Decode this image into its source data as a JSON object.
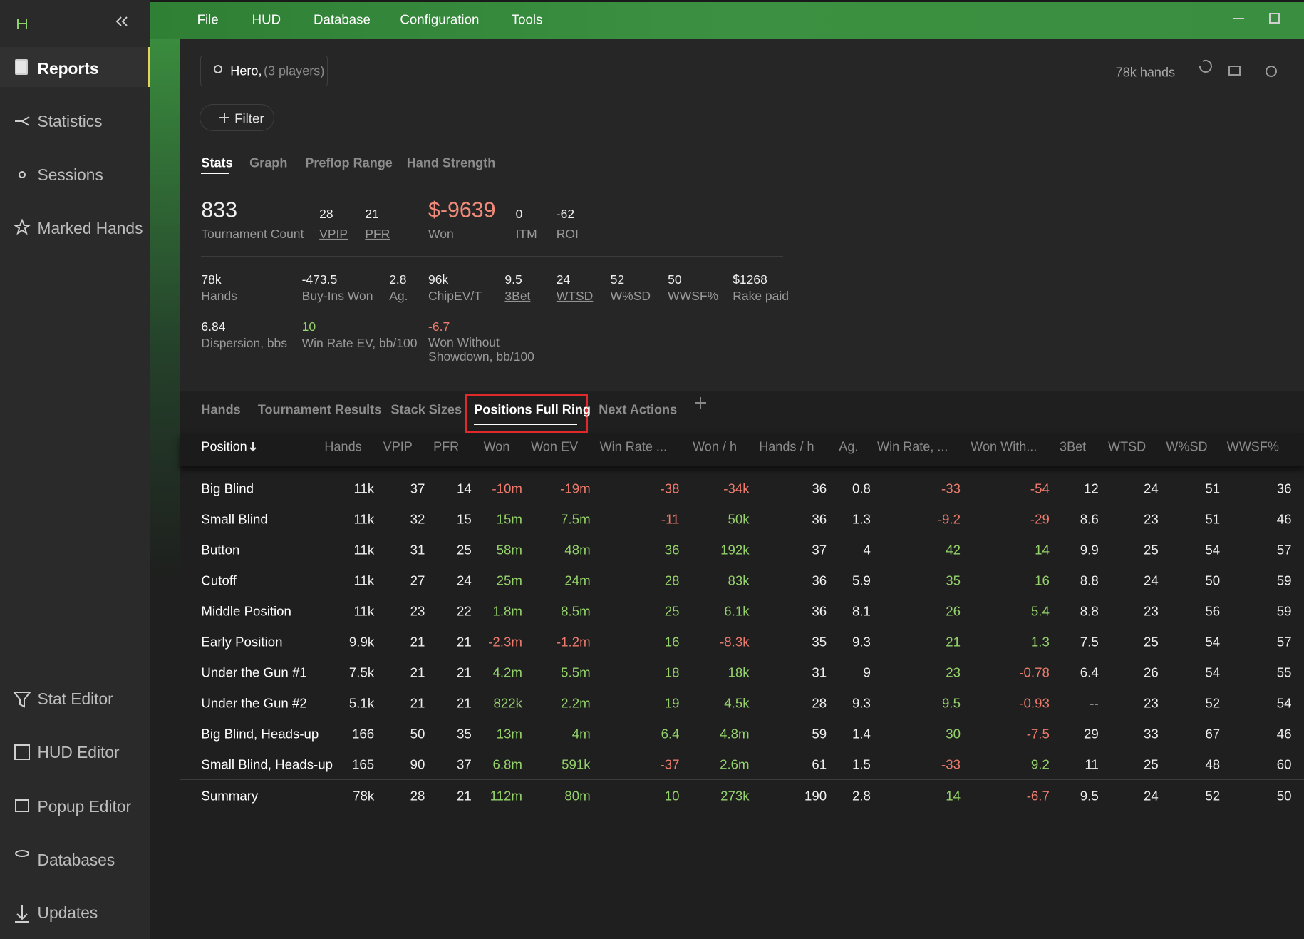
{
  "app": {
    "sidebar": {
      "top": [
        "Reports",
        "Statistics",
        "Sessions",
        "Marked Hands"
      ],
      "bottom": [
        "Stat Editor",
        "HUD Editor",
        "Popup Editor",
        "Databases",
        "Updates"
      ]
    },
    "menu": [
      "File",
      "HUD",
      "Database",
      "Configuration",
      "Tools"
    ],
    "player": {
      "name": "Hero,",
      "detail": "(3 players)"
    },
    "hands_count": "78k hands",
    "filter": "Filter",
    "tabs": [
      "Stats",
      "Graph",
      "Preflop Range",
      "Hand Strength"
    ],
    "colors": {
      "positive": "#95d26b",
      "negative": "#ec7b6d"
    },
    "stats": [
      {
        "value": "833",
        "label": "Tournament Count",
        "big": true
      },
      {
        "value": "28",
        "label": "VPIP",
        "underline": true
      },
      {
        "value": "21",
        "label": "PFR",
        "underline": true
      },
      {
        "value": "$-9639",
        "label": "Won",
        "big": true,
        "tone": "negative"
      },
      {
        "value": "0",
        "label": "ITM"
      },
      {
        "value": "-62",
        "label": "ROI"
      },
      {
        "value": "78k",
        "label": "Hands"
      },
      {
        "value": "-473.5",
        "label": "Buy-Ins Won"
      },
      {
        "value": "2.8",
        "label": "Ag."
      },
      {
        "value": "96k",
        "label": "ChipEV/T"
      },
      {
        "value": "9.5",
        "label": "3Bet",
        "underline": true
      },
      {
        "value": "24",
        "label": "WTSD",
        "underline": true
      },
      {
        "value": "52",
        "label": "W%SD"
      },
      {
        "value": "50",
        "label": "WWSF%"
      },
      {
        "value": "$1268",
        "label": "Rake paid"
      },
      {
        "value": "6.84",
        "label": "Dispersion, bbs"
      },
      {
        "value": "10",
        "label": "Win Rate EV, bb/100",
        "tone": "positive"
      },
      {
        "value": "-6.7",
        "label": "Won Without Showdown, bb/100",
        "tone": "negative"
      }
    ],
    "report_tabs": [
      "Hands",
      "Tournament Results",
      "Stack Sizes",
      "Positions Full Ring",
      "Next Actions"
    ],
    "active_report_tab": 3,
    "table": {
      "columns": [
        {
          "label": "Position"
        },
        {
          "label": "Hands"
        },
        {
          "label": "VPIP"
        },
        {
          "label": "PFR"
        },
        {
          "label": "Won",
          "colored": true
        },
        {
          "label": "Won EV",
          "colored": true
        },
        {
          "label": "Win Rate ...",
          "colored": true
        },
        {
          "label": "Won / h",
          "colored": true
        },
        {
          "label": "Hands / h"
        },
        {
          "label": "Ag."
        },
        {
          "label": "Win Rate, ...",
          "colored": true
        },
        {
          "label": "Won With...",
          "colored": true
        },
        {
          "label": "3Bet"
        },
        {
          "label": "WTSD"
        },
        {
          "label": "W%SD"
        },
        {
          "label": "WWSF%"
        }
      ],
      "rows": [
        [
          "Big Blind",
          "11k",
          "37",
          "14",
          "-10m",
          "-19m",
          "-38",
          "-34k",
          "36",
          "0.8",
          "-33",
          "-54",
          "12",
          "24",
          "51",
          "36"
        ],
        [
          "Small Blind",
          "11k",
          "32",
          "15",
          "15m",
          "7.5m",
          "-11",
          "50k",
          "36",
          "1.3",
          "-9.2",
          "-29",
          "8.6",
          "23",
          "51",
          "46"
        ],
        [
          "Button",
          "11k",
          "31",
          "25",
          "58m",
          "48m",
          "36",
          "192k",
          "37",
          "4",
          "42",
          "14",
          "9.9",
          "25",
          "54",
          "57"
        ],
        [
          "Cutoff",
          "11k",
          "27",
          "24",
          "25m",
          "24m",
          "28",
          "83k",
          "36",
          "5.9",
          "35",
          "16",
          "8.8",
          "24",
          "50",
          "59"
        ],
        [
          "Middle Position",
          "11k",
          "23",
          "22",
          "1.8m",
          "8.5m",
          "25",
          "6.1k",
          "36",
          "8.1",
          "26",
          "5.4",
          "8.8",
          "23",
          "56",
          "59"
        ],
        [
          "Early Position",
          "9.9k",
          "21",
          "21",
          "-2.3m",
          "-1.2m",
          "16",
          "-8.3k",
          "35",
          "9.3",
          "21",
          "1.3",
          "7.5",
          "25",
          "54",
          "57"
        ],
        [
          "Under the Gun #1",
          "7.5k",
          "21",
          "21",
          "4.2m",
          "5.5m",
          "18",
          "18k",
          "31",
          "9",
          "23",
          "-0.78",
          "6.4",
          "26",
          "54",
          "55"
        ],
        [
          "Under the Gun #2",
          "5.1k",
          "21",
          "21",
          "822k",
          "2.2m",
          "19",
          "4.5k",
          "28",
          "9.3",
          "9.5",
          "-0.93",
          "--",
          "23",
          "52",
          "54"
        ],
        [
          "Big Blind, Heads-up",
          "166",
          "50",
          "35",
          "13m",
          "4m",
          "6.4",
          "4.8m",
          "59",
          "1.4",
          "30",
          "-7.5",
          "29",
          "33",
          "67",
          "46"
        ],
        [
          "Small Blind, Heads-up",
          "165",
          "90",
          "37",
          "6.8m",
          "591k",
          "-37",
          "2.6m",
          "61",
          "1.5",
          "-33",
          "9.2",
          "11",
          "25",
          "48",
          "60"
        ]
      ],
      "summary": [
        "Summary",
        "78k",
        "28",
        "21",
        "112m",
        "80m",
        "10",
        "273k",
        "190",
        "2.8",
        "14",
        "-6.7",
        "9.5",
        "24",
        "52",
        "50"
      ]
    }
  }
}
